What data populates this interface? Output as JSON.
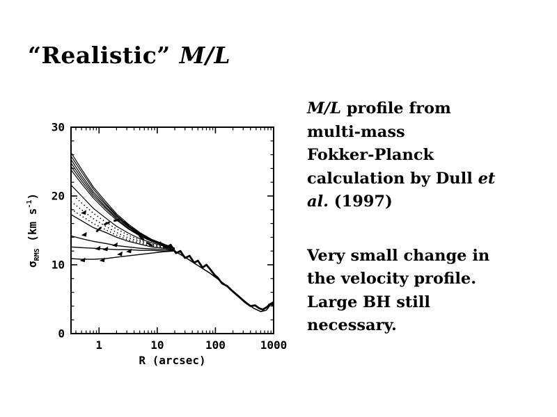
{
  "title": {
    "quoted": "“Realistic”",
    "math": "M/L"
  },
  "right": {
    "block1": {
      "l1a": "M/L",
      "l1b": " profile from",
      "l2": "multi-mass",
      "l3": "Fokker-Planck",
      "l4a": "calculation by Dull ",
      "l4b": "et",
      "l5a": "al.",
      "l5b": " (1997)"
    },
    "block2": {
      "l1": "Very small change in",
      "l2": "the velocity profile.",
      "l3": "Large BH still",
      "l4": "necessary."
    }
  },
  "chart_data": {
    "type": "line",
    "title": "",
    "xlabel": "R (arcsec)",
    "ylabel": "σ_RMS (km s⁻¹)",
    "ylabel_parts": [
      {
        "t": "σ",
        "k": "base"
      },
      {
        "t": "RMS",
        "k": "sub"
      },
      {
        "t": " (km s",
        "k": "base"
      },
      {
        "t": "-1",
        "k": "sup"
      },
      {
        "t": ")",
        "k": "base"
      }
    ],
    "xscale": "log",
    "xlim": [
      0.33,
      1000
    ],
    "ylim": [
      0,
      30
    ],
    "xticks": [
      1,
      10,
      100,
      1000
    ],
    "yticks": [
      0,
      10,
      20,
      30
    ],
    "y_minor_step": 2,
    "grid": false,
    "legend": "none",
    "color": "#000000",
    "series": [
      {
        "name": "model-fan-1",
        "style": "solid",
        "width": 1.2,
        "points": [
          [
            0.33,
            26.3
          ],
          [
            0.5,
            23.9
          ],
          [
            0.8,
            21.3
          ],
          [
            1.3,
            19.2
          ],
          [
            2,
            17.4
          ],
          [
            3.2,
            15.9
          ],
          [
            5,
            14.7
          ],
          [
            8,
            13.7
          ],
          [
            13,
            13.0
          ],
          [
            20,
            12.4
          ]
        ]
      },
      {
        "name": "model-fan-2",
        "style": "solid",
        "width": 1.2,
        "points": [
          [
            0.33,
            25.8
          ],
          [
            0.5,
            23.5
          ],
          [
            0.8,
            21.0
          ],
          [
            1.3,
            18.9
          ],
          [
            2,
            17.2
          ],
          [
            3.2,
            15.7
          ],
          [
            5,
            14.6
          ],
          [
            8,
            13.7
          ],
          [
            13,
            13.0
          ],
          [
            20,
            12.4
          ]
        ]
      },
      {
        "name": "model-fan-3",
        "style": "solid",
        "width": 1.2,
        "points": [
          [
            0.33,
            25.3
          ],
          [
            0.5,
            23.0
          ],
          [
            0.8,
            20.6
          ],
          [
            1.3,
            18.7
          ],
          [
            2,
            17.1
          ],
          [
            3.2,
            15.6
          ],
          [
            5,
            14.5
          ],
          [
            8,
            13.6
          ],
          [
            13,
            12.9
          ],
          [
            20,
            12.4
          ]
        ]
      },
      {
        "name": "model-fan-4",
        "style": "solid",
        "width": 1.2,
        "points": [
          [
            0.33,
            24.8
          ],
          [
            0.5,
            22.6
          ],
          [
            0.8,
            20.3
          ],
          [
            1.3,
            18.4
          ],
          [
            2,
            16.9
          ],
          [
            3.2,
            15.5
          ],
          [
            5,
            14.4
          ],
          [
            8,
            13.5
          ],
          [
            13,
            12.9
          ],
          [
            20,
            12.4
          ]
        ]
      },
      {
        "name": "model-fan-5",
        "style": "solid",
        "width": 1.2,
        "points": [
          [
            0.33,
            24.3
          ],
          [
            0.5,
            22.2
          ],
          [
            0.8,
            20.0
          ],
          [
            1.3,
            18.2
          ],
          [
            2,
            16.7
          ],
          [
            3.2,
            15.3
          ],
          [
            5,
            14.3
          ],
          [
            8,
            13.5
          ],
          [
            13,
            12.9
          ],
          [
            20,
            12.4
          ]
        ]
      },
      {
        "name": "model-fan-6",
        "style": "solid",
        "width": 1.2,
        "points": [
          [
            0.33,
            23.8
          ],
          [
            0.5,
            21.8
          ],
          [
            0.8,
            19.7
          ],
          [
            1.3,
            17.9
          ],
          [
            2,
            16.5
          ],
          [
            3.2,
            15.2
          ],
          [
            5,
            14.2
          ],
          [
            8,
            13.4
          ],
          [
            13,
            12.8
          ],
          [
            20,
            12.3
          ]
        ]
      },
      {
        "name": "model-fan-7",
        "style": "solid",
        "width": 1.2,
        "points": [
          [
            0.33,
            21.6
          ],
          [
            0.5,
            20.0
          ],
          [
            0.8,
            18.2
          ],
          [
            1.3,
            16.8
          ],
          [
            2,
            15.6
          ],
          [
            3.2,
            14.6
          ],
          [
            5,
            13.8
          ],
          [
            8,
            13.2
          ],
          [
            13,
            12.7
          ],
          [
            20,
            12.3
          ]
        ]
      },
      {
        "name": "model-dotted-1",
        "style": "dotted",
        "width": 1.5,
        "points": [
          [
            0.33,
            20.4
          ],
          [
            0.5,
            19.0
          ],
          [
            0.8,
            17.5
          ],
          [
            1.3,
            16.2
          ],
          [
            2,
            15.2
          ],
          [
            3.2,
            14.3
          ],
          [
            5,
            13.6
          ],
          [
            8,
            13.0
          ],
          [
            13,
            12.6
          ],
          [
            20,
            12.2
          ]
        ]
      },
      {
        "name": "model-dotted-2",
        "style": "dotted",
        "width": 1.5,
        "points": [
          [
            0.33,
            19.2
          ],
          [
            0.5,
            18.0
          ],
          [
            0.8,
            16.7
          ],
          [
            1.3,
            15.6
          ],
          [
            2,
            14.7
          ],
          [
            3.2,
            13.9
          ],
          [
            5,
            13.4
          ],
          [
            8,
            12.9
          ],
          [
            13,
            12.5
          ],
          [
            20,
            12.2
          ]
        ]
      },
      {
        "name": "model-dotted-3",
        "style": "dotted",
        "width": 1.5,
        "points": [
          [
            0.33,
            18.1
          ],
          [
            0.5,
            17.1
          ],
          [
            0.8,
            16.0
          ],
          [
            1.3,
            15.1
          ],
          [
            2,
            14.3
          ],
          [
            3.2,
            13.6
          ],
          [
            5,
            13.2
          ],
          [
            8,
            12.7
          ],
          [
            13,
            12.4
          ],
          [
            20,
            12.2
          ]
        ]
      },
      {
        "name": "model-fan-8",
        "style": "solid",
        "width": 1.3,
        "points": [
          [
            0.33,
            17.3
          ],
          [
            0.5,
            16.4
          ],
          [
            0.8,
            15.4
          ],
          [
            1.3,
            14.7
          ],
          [
            2,
            14.0
          ],
          [
            3.2,
            13.4
          ],
          [
            5,
            13.0
          ],
          [
            8,
            12.6
          ],
          [
            13,
            12.4
          ],
          [
            20,
            12.2
          ]
        ]
      },
      {
        "name": "model-fan-9",
        "style": "solid",
        "width": 1.3,
        "points": [
          [
            0.33,
            14.2
          ],
          [
            0.5,
            13.8
          ],
          [
            0.8,
            13.4
          ],
          [
            1.3,
            13.1
          ],
          [
            2,
            12.8
          ],
          [
            3.2,
            12.6
          ],
          [
            5,
            12.4
          ],
          [
            8,
            12.3
          ],
          [
            13,
            12.2
          ],
          [
            20,
            12.1
          ]
        ]
      },
      {
        "name": "model-fan-10",
        "style": "solid",
        "width": 1.3,
        "points": [
          [
            0.33,
            12.6
          ],
          [
            0.5,
            12.5
          ],
          [
            0.8,
            12.4
          ],
          [
            1.3,
            12.3
          ],
          [
            2,
            12.2
          ],
          [
            3.2,
            12.2
          ],
          [
            5,
            12.1
          ],
          [
            8,
            12.1
          ],
          [
            13,
            12.0
          ],
          [
            20,
            12.0
          ]
        ]
      },
      {
        "name": "model-flat-bottom",
        "style": "solid",
        "width": 1.4,
        "points": [
          [
            0.33,
            10.9
          ],
          [
            0.5,
            10.8
          ],
          [
            0.8,
            10.8
          ],
          [
            1.3,
            10.9
          ],
          [
            2,
            11.1
          ],
          [
            3.2,
            11.3
          ],
          [
            5,
            11.5
          ],
          [
            8,
            11.7
          ],
          [
            13,
            11.9
          ],
          [
            20,
            12.0
          ]
        ]
      },
      {
        "name": "dashed-bump",
        "style": "dashed",
        "width": 2.8,
        "points": [
          [
            0.9,
            14.8
          ],
          [
            1.2,
            15.8
          ],
          [
            1.6,
            16.3
          ],
          [
            2.1,
            16.5
          ],
          [
            2.7,
            16.2
          ],
          [
            3.5,
            15.5
          ],
          [
            4.5,
            14.6
          ],
          [
            5.5,
            13.8
          ],
          [
            7,
            13.1
          ],
          [
            9,
            12.6
          ]
        ]
      },
      {
        "name": "tail-model",
        "style": "solid",
        "width": 1.6,
        "points": [
          [
            13,
            12.8
          ],
          [
            20,
            12.0
          ],
          [
            30,
            11.1
          ],
          [
            50,
            9.9
          ],
          [
            80,
            8.8
          ],
          [
            120,
            7.7
          ],
          [
            200,
            6.2
          ],
          [
            300,
            4.9
          ],
          [
            450,
            3.7
          ],
          [
            600,
            3.2
          ],
          [
            750,
            3.4
          ],
          [
            900,
            4.3
          ]
        ]
      },
      {
        "name": "tail-observed",
        "style": "solid",
        "width": 2.8,
        "points": [
          [
            11,
            13.3
          ],
          [
            14,
            12.5
          ],
          [
            17,
            12.9
          ],
          [
            21,
            11.7
          ],
          [
            25,
            12.0
          ],
          [
            30,
            11.0
          ],
          [
            36,
            11.3
          ],
          [
            43,
            10.3
          ],
          [
            50,
            10.6
          ],
          [
            60,
            9.6
          ],
          [
            70,
            10.0
          ],
          [
            82,
            9.3
          ],
          [
            95,
            8.6
          ],
          [
            110,
            8.1
          ],
          [
            130,
            7.3
          ],
          [
            160,
            6.9
          ],
          [
            200,
            6.1
          ],
          [
            250,
            5.4
          ],
          [
            320,
            4.6
          ],
          [
            400,
            4.0
          ],
          [
            480,
            4.1
          ],
          [
            560,
            3.7
          ],
          [
            650,
            3.5
          ],
          [
            750,
            3.8
          ],
          [
            850,
            4.2
          ]
        ]
      }
    ],
    "markers": [
      [
        0.55,
        17.6
      ],
      [
        0.56,
        14.4
      ],
      [
        0.96,
        12.4
      ],
      [
        1.3,
        12.3
      ],
      [
        0.53,
        10.7
      ],
      [
        1.15,
        10.7
      ],
      [
        1.9,
        12.9
      ],
      [
        2.3,
        11.6
      ],
      [
        3.3,
        12.0
      ],
      [
        900,
        4.35
      ]
    ]
  }
}
